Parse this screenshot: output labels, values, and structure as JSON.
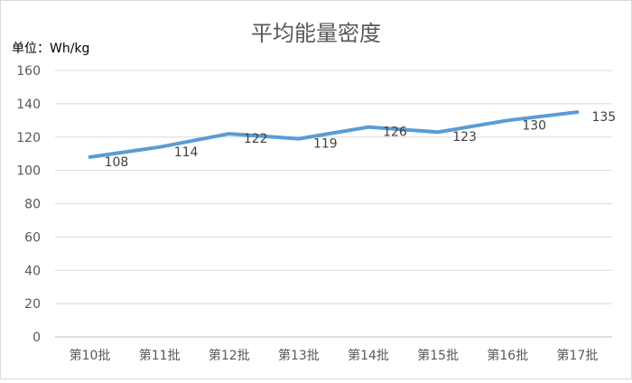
{
  "chart_data": {
    "type": "line",
    "title": "平均能量密度",
    "ylabel": "单位：Wh/kg",
    "xlabel": "",
    "categories": [
      "第10批",
      "第11批",
      "第12批",
      "第13批",
      "第14批",
      "第15批",
      "第16批",
      "第17批"
    ],
    "series": [
      {
        "values": [
          108,
          114,
          122,
          119,
          126,
          123,
          130,
          135
        ]
      }
    ],
    "ylim": [
      0,
      160
    ],
    "yticks": [
      0,
      20,
      40,
      60,
      80,
      100,
      120,
      140,
      160
    ],
    "grid": true,
    "legend": "none",
    "data_labels": true,
    "line_color": "#5b9bd5"
  }
}
